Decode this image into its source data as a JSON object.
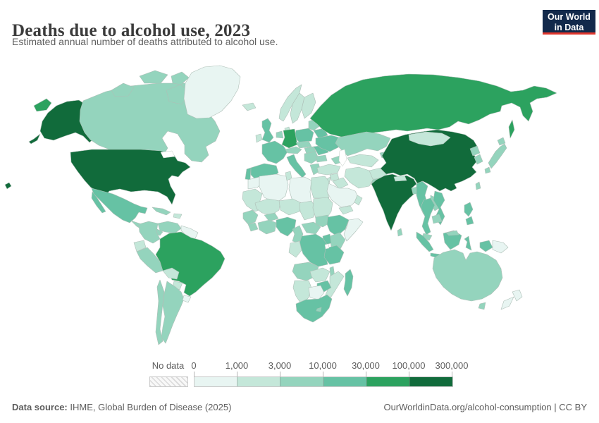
{
  "header": {
    "title": "Deaths due to alcohol use, 2023",
    "subtitle": "Estimated annual number of deaths attributed to alcohol use.",
    "logo": {
      "line1": "Our World",
      "line2": "in Data",
      "bg": "#12294b",
      "accent": "#e0362d"
    }
  },
  "chart_data": {
    "type": "heatmap",
    "subtype": "world-choropleth-map",
    "title": "Deaths due to alcohol use, 2023",
    "subtitle": "Estimated annual number of deaths attributed to alcohol use.",
    "year": "2023",
    "unit": "deaths",
    "legend": {
      "no_data_label": "No data",
      "no_data_pattern": "diagonal-hatch",
      "tick_labels": [
        "0",
        "1,000",
        "3,000",
        "10,000",
        "30,000",
        "100,000",
        "300,000"
      ],
      "bin_ranges": [
        "0–1,000",
        "1,000–3,000",
        "3,000–10,000",
        "10,000–30,000",
        "30,000–100,000",
        "100,000–300,000"
      ],
      "bin_colors": [
        "#e8f5f2",
        "#c4e7d9",
        "#94d4bd",
        "#66c2a4",
        "#2ca25f",
        "#116b3b"
      ]
    },
    "countries": [
      {
        "id": "usa",
        "name": "United States",
        "bin": 5
      },
      {
        "id": "china",
        "name": "China",
        "bin": 5
      },
      {
        "id": "india",
        "name": "India",
        "bin": 5
      },
      {
        "id": "russia",
        "name": "Russia",
        "bin": 4
      },
      {
        "id": "brazil",
        "name": "Brazil",
        "bin": 4
      },
      {
        "id": "germany",
        "name": "Germany",
        "bin": 4
      },
      {
        "id": "mexico",
        "name": "Mexico",
        "bin": 3
      },
      {
        "id": "uk",
        "name": "United Kingdom",
        "bin": 3
      },
      {
        "id": "france",
        "name": "France",
        "bin": 3
      },
      {
        "id": "spain",
        "name": "Spain",
        "bin": 3
      },
      {
        "id": "portugal",
        "name": "Portugal",
        "bin": 3
      },
      {
        "id": "italy",
        "name": "Italy",
        "bin": 3
      },
      {
        "id": "poland",
        "name": "Poland",
        "bin": 3
      },
      {
        "id": "ukraine",
        "name": "Ukraine",
        "bin": 3
      },
      {
        "id": "romania",
        "name": "Romania",
        "bin": 3
      },
      {
        "id": "belarus",
        "name": "Belarus",
        "bin": 3
      },
      {
        "id": "nigeria",
        "name": "Nigeria",
        "bin": 3
      },
      {
        "id": "ethiopia",
        "name": "Ethiopia",
        "bin": 3
      },
      {
        "id": "drc",
        "name": "Democratic Republic of Congo",
        "bin": 3
      },
      {
        "id": "uganda",
        "name": "Uganda",
        "bin": 3
      },
      {
        "id": "tanzania",
        "name": "Tanzania",
        "bin": 3
      },
      {
        "id": "zimbabwe",
        "name": "Zimbabwe",
        "bin": 3
      },
      {
        "id": "south-africa",
        "name": "South Africa",
        "bin": 3
      },
      {
        "id": "madagascar",
        "name": "Madagascar",
        "bin": 3
      },
      {
        "id": "myanmar",
        "name": "Myanmar",
        "bin": 3
      },
      {
        "id": "thailand",
        "name": "Thailand",
        "bin": 3
      },
      {
        "id": "vietnam",
        "name": "Vietnam",
        "bin": 3
      },
      {
        "id": "philippines",
        "name": "Philippines",
        "bin": 3
      },
      {
        "id": "indonesia",
        "name": "Indonesia",
        "bin": 3
      },
      {
        "id": "canada",
        "name": "Canada",
        "bin": 2
      },
      {
        "id": "colombia",
        "name": "Colombia",
        "bin": 2
      },
      {
        "id": "venezuela",
        "name": "Venezuela",
        "bin": 2
      },
      {
        "id": "peru",
        "name": "Peru",
        "bin": 2
      },
      {
        "id": "chile",
        "name": "Chile",
        "bin": 2
      },
      {
        "id": "argentina",
        "name": "Argentina",
        "bin": 2
      },
      {
        "id": "cuba",
        "name": "Cuba",
        "bin": 2
      },
      {
        "id": "central-america",
        "name": "Central America",
        "bin": 2
      },
      {
        "id": "japan",
        "name": "Japan",
        "bin": 2
      },
      {
        "id": "north-korea",
        "name": "North Korea",
        "bin": 2
      },
      {
        "id": "south-korea",
        "name": "South Korea",
        "bin": 2
      },
      {
        "id": "taiwan",
        "name": "Taiwan",
        "bin": 2
      },
      {
        "id": "sri-lanka",
        "name": "Sri Lanka",
        "bin": 2
      },
      {
        "id": "bangladesh",
        "name": "Bangladesh",
        "bin": 2
      },
      {
        "id": "pakistan",
        "name": "Pakistan",
        "bin": 2
      },
      {
        "id": "laos",
        "name": "Laos",
        "bin": 2
      },
      {
        "id": "cambodia",
        "name": "Cambodia",
        "bin": 2
      },
      {
        "id": "malaysia",
        "name": "Malaysia",
        "bin": 2
      },
      {
        "id": "kazakhstan",
        "name": "Kazakhstan",
        "bin": 2
      },
      {
        "id": "kyrgyzstan",
        "name": "Kyrgyzstan",
        "bin": 2
      },
      {
        "id": "caucasus",
        "name": "Caucasus",
        "bin": 2
      },
      {
        "id": "australia",
        "name": "Australia",
        "bin": 2
      },
      {
        "id": "baltics",
        "name": "Baltic states",
        "bin": 2
      },
      {
        "id": "czechia",
        "name": "Czechia",
        "bin": 2
      },
      {
        "id": "hungary",
        "name": "Hungary",
        "bin": 2
      },
      {
        "id": "austria",
        "name": "Austria",
        "bin": 2
      },
      {
        "id": "benelux",
        "name": "Netherlands",
        "bin": 2
      },
      {
        "id": "balkans",
        "name": "Western Balkans",
        "bin": 2
      },
      {
        "id": "bulgaria",
        "name": "Bulgaria",
        "bin": 2
      },
      {
        "id": "greece",
        "name": "Greece",
        "bin": 2
      },
      {
        "id": "senegal",
        "name": "Senegal",
        "bin": 2
      },
      {
        "id": "liberia",
        "name": "Liberia",
        "bin": 2
      },
      {
        "id": "ghana",
        "name": "Ghana",
        "bin": 2
      },
      {
        "id": "burkina",
        "name": "Burkina Faso",
        "bin": 2
      },
      {
        "id": "cameroon",
        "name": "Cameroon",
        "bin": 2
      },
      {
        "id": "car",
        "name": "Central African Republic",
        "bin": 2
      },
      {
        "id": "south-sudan",
        "name": "South Sudan",
        "bin": 2
      },
      {
        "id": "kenya",
        "name": "Kenya",
        "bin": 2
      },
      {
        "id": "angola",
        "name": "Angola",
        "bin": 2
      },
      {
        "id": "malawi",
        "name": "Malawi",
        "bin": 2
      },
      {
        "id": "lesotho",
        "name": "Lesotho",
        "bin": 2
      },
      {
        "id": "bolivia",
        "name": "Bolivia",
        "bin": 1
      },
      {
        "id": "paraguay",
        "name": "Paraguay",
        "bin": 1
      },
      {
        "id": "ecuador",
        "name": "Ecuador",
        "bin": 1
      },
      {
        "id": "hispaniola",
        "name": "Haiti/Dominican Republic",
        "bin": 1
      },
      {
        "id": "iceland",
        "name": "Iceland",
        "bin": 1
      },
      {
        "id": "ireland",
        "name": "Ireland",
        "bin": 1
      },
      {
        "id": "norway",
        "name": "Norway",
        "bin": 1
      },
      {
        "id": "sweden",
        "name": "Sweden",
        "bin": 1
      },
      {
        "id": "finland",
        "name": "Finland",
        "bin": 1
      },
      {
        "id": "denmark",
        "name": "Denmark",
        "bin": 1
      },
      {
        "id": "mongolia",
        "name": "Mongolia",
        "bin": 1
      },
      {
        "id": "iran",
        "name": "Iran",
        "bin": 1
      },
      {
        "id": "afghanistan",
        "name": "Afghanistan",
        "bin": 1
      },
      {
        "id": "turkey",
        "name": "Turkey",
        "bin": 1
      },
      {
        "id": "syria",
        "name": "Syria",
        "bin": 1
      },
      {
        "id": "iraq",
        "name": "Iraq",
        "bin": 1
      },
      {
        "id": "yemen",
        "name": "Yemen",
        "bin": 1
      },
      {
        "id": "oman",
        "name": "Oman",
        "bin": 1
      },
      {
        "id": "levant",
        "name": "Jordan",
        "bin": 1
      },
      {
        "id": "uzbekistan",
        "name": "Uzbekistan",
        "bin": 1
      },
      {
        "id": "nepal",
        "name": "Nepal",
        "bin": 1
      },
      {
        "id": "egypt",
        "name": "Egypt",
        "bin": 1
      },
      {
        "id": "tunisia",
        "name": "Tunisia",
        "bin": 1
      },
      {
        "id": "mauritania",
        "name": "Mauritania",
        "bin": 1
      },
      {
        "id": "mali",
        "name": "Mali",
        "bin": 1
      },
      {
        "id": "niger",
        "name": "Niger",
        "bin": 1
      },
      {
        "id": "chad",
        "name": "Chad",
        "bin": 1
      },
      {
        "id": "sudan",
        "name": "Sudan",
        "bin": 1
      },
      {
        "id": "congo",
        "name": "Congo",
        "bin": 1
      },
      {
        "id": "zambia",
        "name": "Zambia",
        "bin": 1
      },
      {
        "id": "mozambique",
        "name": "Mozambique",
        "bin": 1
      },
      {
        "id": "namibia",
        "name": "Namibia",
        "bin": 1
      },
      {
        "id": "greenland",
        "name": "Greenland",
        "bin": 0
      },
      {
        "id": "guyanas",
        "name": "Guyana/Suriname",
        "bin": 0
      },
      {
        "id": "uruguay",
        "name": "Uruguay",
        "bin": 0
      },
      {
        "id": "morocco",
        "name": "Morocco",
        "bin": 0
      },
      {
        "id": "algeria",
        "name": "Algeria",
        "bin": 0
      },
      {
        "id": "libya",
        "name": "Libya",
        "bin": 0
      },
      {
        "id": "saudi-arabia",
        "name": "Saudi Arabia",
        "bin": 0
      },
      {
        "id": "somalia",
        "name": "Somalia",
        "bin": 0
      },
      {
        "id": "botswana",
        "name": "Botswana",
        "bin": 0
      },
      {
        "id": "png",
        "name": "Papua New Guinea",
        "bin": 0
      },
      {
        "id": "new-zealand",
        "name": "New Zealand",
        "bin": 0
      }
    ]
  },
  "footer": {
    "source_label": "Data source:",
    "source_text": " IHME, Global Burden of Disease (2025)",
    "right_text": "OurWorldinData.org/alcohol-consumption | CC BY"
  }
}
